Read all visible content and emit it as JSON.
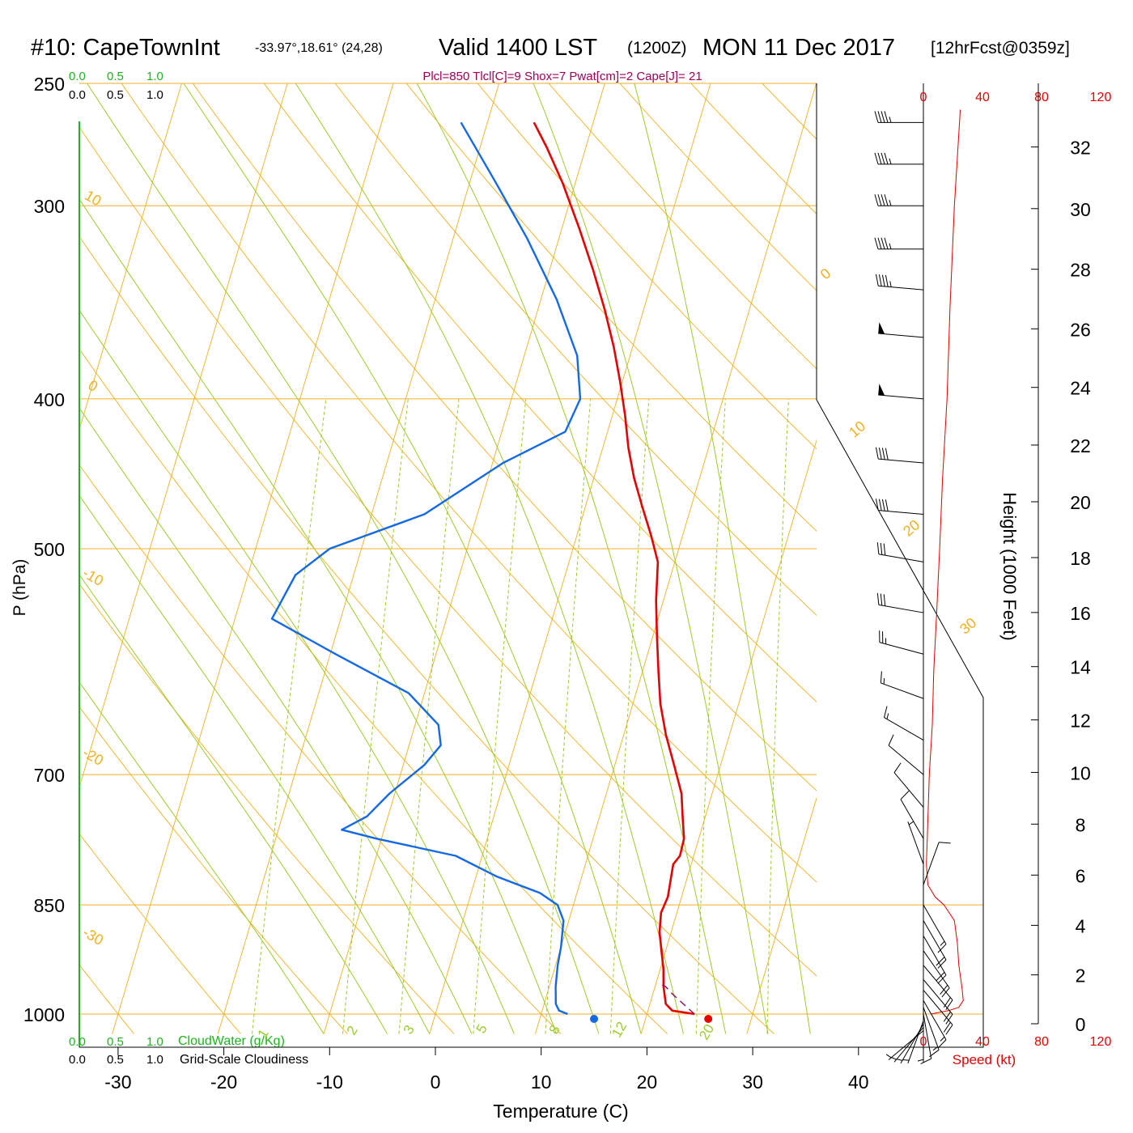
{
  "header": {
    "station": "#10: CapeTownInt",
    "coords": "-33.97°,18.61° (24,28)",
    "valid": "Valid 1400 LST",
    "utc": "(1200Z)",
    "date": "MON 11 Dec 2017",
    "forecast": "[12hrFcst@0359z]",
    "indices": "Plcl=850 Tlcl[C]=9 Shox=7 Pwat[cm]=2 Cape[J]= 21"
  },
  "cloud_scale": {
    "ticks": [
      "0.0",
      "0.5",
      "1.0"
    ],
    "cloud_water_label": "CloudWater (g/Kg)",
    "cloudiness_label": "Grid-Scale Cloudiness"
  },
  "wind_speed_axis": {
    "ticks": [
      "0",
      "40",
      "80",
      "120"
    ],
    "label": "Speed (kt)"
  },
  "height_axis": {
    "label": "Height (1000 Feet)"
  },
  "colors": {
    "isobar": "#f0b020",
    "isotherm": "#f0b020",
    "dry_adiabat": "#f0b020",
    "moist_adiabat": "#9ccc2c",
    "mixing_ratio": "#9ccc2c",
    "temperature": "#e60000",
    "dewpoint": "#1469e6",
    "parcel": "#8b0a50",
    "cloud_green": "#1db31d",
    "indices": "#a0005a",
    "wind_speed": "#e60000"
  },
  "chart_data": {
    "type": "line",
    "chart_kind": "Skew-T log-P sounding",
    "xlabel": "Temperature (C)",
    "ylabel": "P (hPa)",
    "xlim": [
      -34,
      36
    ],
    "ylim": [
      1030,
      250
    ],
    "x_ticks": [
      "-30",
      "-20",
      "-10",
      "0",
      "10",
      "20",
      "30",
      "40"
    ],
    "pressure_levels": [
      "250",
      "300",
      "400",
      "500",
      "700",
      "850",
      "1000"
    ],
    "height_ticks": [
      "0",
      "2",
      "4",
      "6",
      "8",
      "10",
      "12",
      "14",
      "16",
      "18",
      "20",
      "22",
      "24",
      "26",
      "28",
      "30",
      "32"
    ],
    "isotherm_labels": [
      "10",
      "0",
      "-10",
      "-20",
      "-30",
      "0",
      "10",
      "20",
      "30"
    ],
    "mixing_ratio_labels": [
      "1",
      "2",
      "3",
      "5",
      "8",
      "12",
      "20"
    ],
    "series": [
      {
        "name": "Temperature",
        "points": [
          [
            1000,
            24.5
          ],
          [
            995,
            22.3
          ],
          [
            985,
            21.5
          ],
          [
            960,
            20.8
          ],
          [
            935,
            20.3
          ],
          [
            910,
            19.6
          ],
          [
            885,
            18.9
          ],
          [
            860,
            18.5
          ],
          [
            840,
            18.7
          ],
          [
            820,
            18.5
          ],
          [
            800,
            18.3
          ],
          [
            790,
            18.7
          ],
          [
            770,
            18.6
          ],
          [
            750,
            18.0
          ],
          [
            720,
            17.1
          ],
          [
            690,
            15.6
          ],
          [
            660,
            14.0
          ],
          [
            630,
            12.6
          ],
          [
            600,
            11.5
          ],
          [
            570,
            10.4
          ],
          [
            540,
            9.3
          ],
          [
            510,
            8.4
          ],
          [
            490,
            7.0
          ],
          [
            470,
            5.4
          ],
          [
            450,
            3.8
          ],
          [
            430,
            2.4
          ],
          [
            410,
            1.2
          ],
          [
            390,
            -0.2
          ],
          [
            370,
            -1.8
          ],
          [
            350,
            -3.7
          ],
          [
            330,
            -5.9
          ],
          [
            310,
            -8.4
          ],
          [
            290,
            -11.2
          ],
          [
            275,
            -13.7
          ],
          [
            265,
            -15.6
          ]
        ]
      },
      {
        "name": "Dewpoint",
        "points": [
          [
            1000,
            12.5
          ],
          [
            995,
            11.6
          ],
          [
            985,
            11.1
          ],
          [
            960,
            10.6
          ],
          [
            930,
            10.2
          ],
          [
            905,
            10.0
          ],
          [
            870,
            9.5
          ],
          [
            850,
            8.5
          ],
          [
            835,
            6.5
          ],
          [
            815,
            2.0
          ],
          [
            790,
            -2.5
          ],
          [
            770,
            -10.5
          ],
          [
            760,
            -14.0
          ],
          [
            745,
            -12.0
          ],
          [
            720,
            -10.5
          ],
          [
            690,
            -8.0
          ],
          [
            670,
            -7.0
          ],
          [
            650,
            -7.8
          ],
          [
            620,
            -11.5
          ],
          [
            585,
            -19.5
          ],
          [
            555,
            -26.5
          ],
          [
            520,
            -25.5
          ],
          [
            500,
            -23.0
          ],
          [
            475,
            -15.0
          ],
          [
            440,
            -9.0
          ],
          [
            420,
            -4.0
          ],
          [
            400,
            -3.5
          ],
          [
            375,
            -5.0
          ],
          [
            345,
            -8.5
          ],
          [
            315,
            -13.0
          ],
          [
            290,
            -17.5
          ],
          [
            265,
            -22.5
          ]
        ]
      },
      {
        "name": "Parcel",
        "points": [
          [
            1000,
            24.5
          ],
          [
            990,
            23.6
          ],
          [
            980,
            22.7
          ],
          [
            970,
            21.8
          ],
          [
            960,
            21.0
          ],
          [
            955,
            20.3
          ]
        ]
      }
    ],
    "surface_markers": [
      {
        "name": "dewpoint",
        "pressure": 1000,
        "temperature": 15.0
      },
      {
        "name": "temperature",
        "pressure": 1000,
        "temperature": 25.8
      }
    ],
    "wind_speed_profile_kt": [
      [
        1000,
        5
      ],
      [
        995,
        17
      ],
      [
        990,
        24
      ],
      [
        980,
        27
      ],
      [
        960,
        26
      ],
      [
        930,
        24
      ],
      [
        900,
        23
      ],
      [
        870,
        21
      ],
      [
        850,
        14
      ],
      [
        840,
        8
      ],
      [
        825,
        3
      ],
      [
        800,
        2
      ],
      [
        750,
        3
      ],
      [
        700,
        4
      ],
      [
        650,
        6
      ],
      [
        600,
        7
      ],
      [
        550,
        9
      ],
      [
        500,
        11
      ],
      [
        450,
        13
      ],
      [
        400,
        16
      ],
      [
        350,
        18
      ],
      [
        300,
        21
      ],
      [
        260,
        25
      ]
    ],
    "wind_barbs": [
      {
        "pressure": 265,
        "direction": 270,
        "speed_kt": 45
      },
      {
        "pressure": 282,
        "direction": 270,
        "speed_kt": 45
      },
      {
        "pressure": 300,
        "direction": 270,
        "speed_kt": 45
      },
      {
        "pressure": 320,
        "direction": 270,
        "speed_kt": 45
      },
      {
        "pressure": 340,
        "direction": 275,
        "speed_kt": 45
      },
      {
        "pressure": 365,
        "direction": 275,
        "speed_kt": 50
      },
      {
        "pressure": 400,
        "direction": 275,
        "speed_kt": 50
      },
      {
        "pressure": 440,
        "direction": 275,
        "speed_kt": 40
      },
      {
        "pressure": 475,
        "direction": 275,
        "speed_kt": 40
      },
      {
        "pressure": 510,
        "direction": 280,
        "speed_kt": 30
      },
      {
        "pressure": 550,
        "direction": 280,
        "speed_kt": 30
      },
      {
        "pressure": 585,
        "direction": 285,
        "speed_kt": 25
      },
      {
        "pressure": 625,
        "direction": 290,
        "speed_kt": 15
      },
      {
        "pressure": 665,
        "direction": 300,
        "speed_kt": 15
      },
      {
        "pressure": 700,
        "direction": 310,
        "speed_kt": 10
      },
      {
        "pressure": 735,
        "direction": 320,
        "speed_kt": 10
      },
      {
        "pressure": 770,
        "direction": 330,
        "speed_kt": 10
      },
      {
        "pressure": 800,
        "direction": 340,
        "speed_kt": 5
      },
      {
        "pressure": 825,
        "direction": 20,
        "speed_kt": 10
      },
      {
        "pressure": 850,
        "direction": 150,
        "speed_kt": 15
      },
      {
        "pressure": 870,
        "direction": 150,
        "speed_kt": 20
      },
      {
        "pressure": 890,
        "direction": 150,
        "speed_kt": 20
      },
      {
        "pressure": 910,
        "direction": 145,
        "speed_kt": 20
      },
      {
        "pressure": 930,
        "direction": 140,
        "speed_kt": 20
      },
      {
        "pressure": 950,
        "direction": 140,
        "speed_kt": 20
      },
      {
        "pressure": 965,
        "direction": 140,
        "speed_kt": 20
      },
      {
        "pressure": 980,
        "direction": 150,
        "speed_kt": 15
      },
      {
        "pressure": 990,
        "direction": 160,
        "speed_kt": 15
      },
      {
        "pressure": 1000,
        "direction": 170,
        "speed_kt": 10
      },
      {
        "pressure": 1005,
        "direction": 180,
        "speed_kt": 5
      },
      {
        "pressure": 1010,
        "direction": 200,
        "speed_kt": 5
      },
      {
        "pressure": 1015,
        "direction": 210,
        "speed_kt": 5
      },
      {
        "pressure": 1020,
        "direction": 220,
        "speed_kt": 5
      },
      {
        "pressure": 1025,
        "direction": 230,
        "speed_kt": 5
      }
    ]
  }
}
